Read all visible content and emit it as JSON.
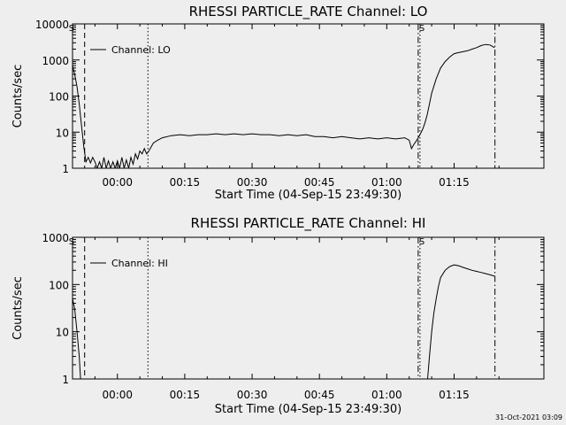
{
  "chart_data": [
    {
      "type": "line",
      "title": "RHESSI PARTICLE_RATE Channel: LO",
      "xlabel": "Start Time (04-Sep-15 23:49:30)",
      "ylabel": "Counts/sec",
      "yscale": "log",
      "ylim": [
        1,
        10000
      ],
      "xlim_minutes": [
        -10,
        95
      ],
      "x_ticks": [
        "00:00",
        "00:15",
        "00:30",
        "00:45",
        "01:00",
        "01:15"
      ],
      "x_tick_minutes": [
        0,
        15,
        30,
        45,
        60,
        75
      ],
      "y_ticks": [
        "1",
        "10",
        "100",
        "1000",
        "10000"
      ],
      "legend": "Channel: LO",
      "flags": [
        "S",
        "S"
      ],
      "vlines": [
        {
          "minute": -7.3,
          "style": "dashed"
        },
        {
          "minute": 6.8,
          "style": "dotted"
        },
        {
          "minute": 67.0,
          "style": "dashdot"
        },
        {
          "minute": 67.4,
          "style": "dotted"
        },
        {
          "minute": 84.1,
          "style": "dashdot"
        }
      ],
      "series": [
        {
          "name": "Channel: LO",
          "x": [
            -10,
            -9.5,
            -9,
            -8.5,
            -8,
            -7.5,
            -7,
            -6.5,
            -6,
            -5.5,
            -5,
            -4.5,
            -4,
            -3.5,
            -3,
            -2.5,
            -2,
            -1.5,
            -1,
            -0.5,
            0,
            0.5,
            1,
            1.5,
            2,
            2.5,
            3,
            3.5,
            4,
            4.5,
            5,
            5.5,
            6,
            6.5,
            7,
            8,
            9,
            10,
            12,
            14,
            16,
            18,
            20,
            22,
            24,
            26,
            28,
            30,
            32,
            34,
            36,
            38,
            40,
            42,
            44,
            46,
            48,
            50,
            52,
            54,
            56,
            58,
            60,
            62,
            64,
            65,
            65.5,
            66,
            66.5,
            67,
            67.5,
            68,
            68.5,
            69,
            69.5,
            70,
            71,
            72,
            73,
            74,
            75,
            76,
            77,
            78,
            79,
            80,
            81,
            82,
            83,
            84
          ],
          "values": [
            700,
            400,
            180,
            60,
            15,
            4,
            1.5,
            2,
            1.4,
            2,
            1.5,
            1,
            1.5,
            1,
            2,
            1,
            1.6,
            1,
            1.5,
            1,
            1.6,
            1,
            2,
            1,
            1.7,
            1,
            2,
            1.3,
            2.5,
            1.8,
            3,
            2.5,
            3.5,
            2.5,
            3,
            5,
            6,
            7,
            8,
            8.5,
            8,
            8.5,
            8.5,
            9,
            8.5,
            9,
            8.5,
            9,
            8.5,
            8.5,
            8,
            8.5,
            8,
            8.5,
            7.5,
            7.5,
            7,
            7.5,
            7,
            6.5,
            7,
            6.5,
            7,
            6.5,
            7,
            6,
            3.5,
            4.5,
            5.5,
            7,
            9,
            12,
            18,
            30,
            60,
            120,
            300,
            600,
            900,
            1200,
            1500,
            1600,
            1700,
            1800,
            2000,
            2200,
            2500,
            2700,
            2600,
            2200
          ]
        }
      ]
    },
    {
      "type": "line",
      "title": "RHESSI PARTICLE_RATE Channel: HI",
      "xlabel": "Start Time (04-Sep-15 23:49:30)",
      "ylabel": "Counts/sec",
      "yscale": "log",
      "ylim": [
        1,
        1000
      ],
      "xlim_minutes": [
        -10,
        95
      ],
      "x_ticks": [
        "00:00",
        "00:15",
        "00:30",
        "00:45",
        "01:00",
        "01:15"
      ],
      "x_tick_minutes": [
        0,
        15,
        30,
        45,
        60,
        75
      ],
      "y_ticks": [
        "1",
        "10",
        "100",
        "1000"
      ],
      "legend": "Channel: HI",
      "flags": [
        "S",
        "S"
      ],
      "vlines": [
        {
          "minute": -7.3,
          "style": "dashed"
        },
        {
          "minute": 6.8,
          "style": "dotted"
        },
        {
          "minute": 67.0,
          "style": "dashdot"
        },
        {
          "minute": 67.4,
          "style": "dotted"
        },
        {
          "minute": 84.1,
          "style": "dashdot"
        }
      ],
      "series": [
        {
          "name": "Channel: HI",
          "segments": [
            {
              "x": [
                -10,
                -9.5,
                -9,
                -8.5,
                -8.2
              ],
              "values": [
                50,
                30,
                10,
                3,
                1
              ]
            },
            {
              "x": [
                69.1,
                69.5,
                70,
                70.5,
                71,
                71.5,
                72,
                73,
                74,
                75,
                76,
                77,
                78,
                79,
                80,
                81,
                82,
                83,
                84
              ],
              "values": [
                1,
                3,
                10,
                25,
                50,
                90,
                140,
                200,
                240,
                260,
                250,
                230,
                215,
                200,
                190,
                180,
                170,
                160,
                150
              ]
            }
          ]
        }
      ]
    }
  ],
  "timestamp": "31-Oct-2021 03:09"
}
